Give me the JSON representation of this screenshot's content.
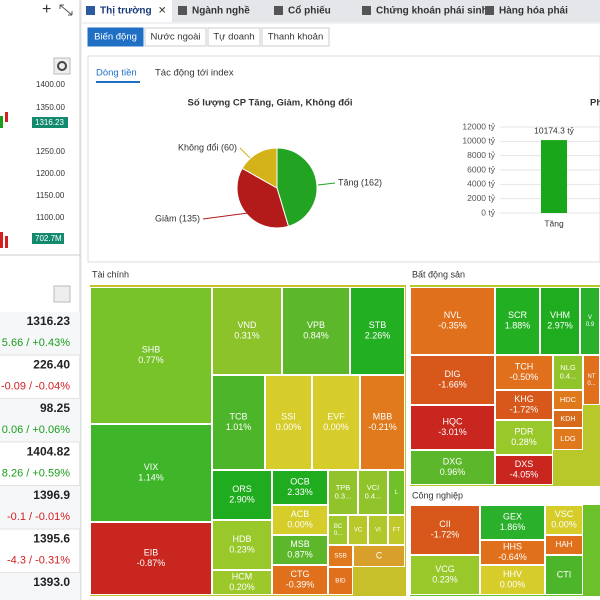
{
  "left_panel": {
    "price_axis": [
      "1400.00",
      "1350.00",
      "1250.00",
      "1200.00",
      "1150.00",
      "1100.00"
    ],
    "last_price": "1316.23",
    "volume": "702.7M",
    "indices": [
      {
        "price": "1316.23",
        "change": "5.66 / +0.43%",
        "color": "#1a9e1a"
      },
      {
        "price": "226.40",
        "change": "-0.09 / -0.04%",
        "color": "#d32020"
      },
      {
        "price": "98.25",
        "change": "0.06 / +0.06%",
        "color": "#1a9e1a"
      },
      {
        "price": "1404.82",
        "change": "8.26 / +0.59%",
        "color": "#1a9e1a"
      },
      {
        "price": "1396.9",
        "change": "-0.1 / -0.01%",
        "color": "#d32020"
      },
      {
        "price": "1395.6",
        "change": "-4.3 / -0.31%",
        "color": "#d32020"
      },
      {
        "price": "1393.0"
      }
    ]
  },
  "tabs": [
    "Thị trường",
    "Ngành nghề",
    "Cổ phiếu",
    "Chứng khoán phái sinh",
    "Hàng hóa phái"
  ],
  "sub_tabs": [
    "Biến động",
    "Nước ngoài",
    "Tự doanh",
    "Thanh khoản"
  ],
  "view_tabs": [
    "Dòng tiền",
    "Tác động tới index"
  ],
  "chart_data": [
    {
      "type": "pie",
      "title": "Số lượng CP Tăng, Giảm, Không đổi",
      "labels": [
        "Tăng (162)",
        "Giảm (135)",
        "Không đổi (60)"
      ],
      "values": [
        162,
        135,
        60
      ],
      "colors": [
        "#22a322",
        "#b31b1b",
        "#d4b21a"
      ]
    },
    {
      "type": "bar",
      "title": "Ph",
      "categories": [
        "Tăng"
      ],
      "values": [
        10174.3
      ],
      "value_labels": [
        "10174.3 tỷ"
      ],
      "color": "#1aa61a",
      "ylim": [
        0,
        12000
      ],
      "yticks": [
        {
          "value": 0,
          "label": "0 tỷ"
        },
        {
          "value": 2000,
          "label": "2000 tỷ"
        },
        {
          "value": 4000,
          "label": "4000 tỷ"
        },
        {
          "value": 6000,
          "label": "6000 tỷ"
        },
        {
          "value": 8000,
          "label": "8000 tỷ"
        },
        {
          "value": 10000,
          "label": "10000 tỷ"
        },
        {
          "value": 12000,
          "label": "12000 tỷ"
        }
      ]
    }
  ],
  "treemap": {
    "sectors": [
      {
        "name": "Tài chính",
        "tiles": [
          {
            "symbol": "SHB",
            "label": "0.77%",
            "color": "#78c22a"
          },
          {
            "symbol": "VIX",
            "label": "1.14%",
            "color": "#3fb52a"
          },
          {
            "symbol": "EIB",
            "label": "-0.87%",
            "color": "#c8261e"
          },
          {
            "symbol": "VND",
            "label": "0.31%",
            "color": "#8cc22a"
          },
          {
            "symbol": "VPB",
            "label": "0.84%",
            "color": "#5cb82a"
          },
          {
            "symbol": "STB",
            "label": "2.26%",
            "color": "#22b022"
          },
          {
            "symbol": "TCB",
            "label": "1.01%",
            "color": "#4db52a"
          },
          {
            "symbol": "SSI",
            "label": "0.00%",
            "color": "#d6cc2a"
          },
          {
            "symbol": "EVF",
            "label": "0.00%",
            "color": "#d6cc2a"
          },
          {
            "symbol": "MBB",
            "label": "-0.21%",
            "color": "#e07a1c"
          },
          {
            "symbol": "ORS",
            "label": "2.90%",
            "color": "#1fad1f"
          },
          {
            "symbol": "HDB",
            "label": "0.23%",
            "color": "#98c82a"
          },
          {
            "symbol": "HCM",
            "label": "0.20%",
            "color": "#9cc82a"
          },
          {
            "symbol": "OCB",
            "label": "2.33%",
            "color": "#1fad1f"
          },
          {
            "symbol": "ACB",
            "label": "0.00%",
            "color": "#d6cc2a"
          },
          {
            "symbol": "MSB",
            "label": "0.87%",
            "color": "#5cb82a"
          },
          {
            "symbol": "CTG",
            "label": "-0.39%",
            "color": "#e0701c"
          },
          {
            "symbol": "TPB",
            "label": "0.3...",
            "color": "#90c42a"
          },
          {
            "symbol": "VCI",
            "label": "0.4...",
            "color": "#90c42a"
          },
          {
            "symbol": "L",
            "color": "#70c02a"
          },
          {
            "symbol": "BC",
            "label": "0...",
            "color": "#a0c82a"
          },
          {
            "symbol": "VC",
            "color": "#b8c82a"
          },
          {
            "symbol": "VI",
            "color": "#b0c82a"
          },
          {
            "symbol": "FT",
            "color": "#c0c82a"
          },
          {
            "symbol": "SSB",
            "color": "#e0781c"
          },
          {
            "symbol": "C",
            "color": "#d8a02a"
          },
          {
            "symbol": "BID",
            "color": "#e0701c"
          }
        ]
      },
      {
        "name": "Bất động sản",
        "tiles": [
          {
            "symbol": "NVL",
            "label": "-0.35%",
            "color": "#e0701c"
          },
          {
            "symbol": "SCR",
            "label": "1.88%",
            "color": "#22b022"
          },
          {
            "symbol": "VHM",
            "label": "2.97%",
            "color": "#1fad1f"
          },
          {
            "symbol": "V",
            "label": "0.9",
            "color": "#2ab02a"
          },
          {
            "symbol": "DIG",
            "label": "-1.66%",
            "color": "#d8581c"
          },
          {
            "symbol": "HQC",
            "label": "-3.01%",
            "color": "#c8261e"
          },
          {
            "symbol": "DXG",
            "label": "0.96%",
            "color": "#5cb82a"
          },
          {
            "symbol": "TCH",
            "label": "-0.50%",
            "color": "#e0701c"
          },
          {
            "symbol": "KHG",
            "label": "-1.72%",
            "color": "#d8581c"
          },
          {
            "symbol": "PDR",
            "label": "0.28%",
            "color": "#98c82a"
          },
          {
            "symbol": "DXS",
            "label": "-4.05%",
            "color": "#c8261e"
          },
          {
            "symbol": "NLG",
            "label": "0.4...",
            "color": "#90c42a"
          },
          {
            "symbol": "NT",
            "label": "0...",
            "color": "#e0701c"
          },
          {
            "symbol": "HDC",
            "color": "#e0781c"
          },
          {
            "symbol": "KDH",
            "color": "#d86a1c"
          },
          {
            "symbol": "LDG",
            "color": "#e0781c"
          }
        ]
      },
      {
        "name": "Công nghiệp",
        "tiles": [
          {
            "symbol": "CII",
            "label": "-1.72%",
            "color": "#d8581c"
          },
          {
            "symbol": "VCG",
            "label": "0.23%",
            "color": "#98c82a"
          },
          {
            "symbol": "GEX",
            "label": "1.86%",
            "color": "#2ab02a"
          },
          {
            "symbol": "HHS",
            "label": "-0.64%",
            "color": "#e0701c"
          },
          {
            "symbol": "HHV",
            "label": "0.00%",
            "color": "#d6cc2a"
          },
          {
            "symbol": "VSC",
            "label": "0.00%",
            "color": "#d6cc2a"
          },
          {
            "symbol": "HAH",
            "color": "#e0701c"
          },
          {
            "symbol": "CTI",
            "color": "#4db52a"
          }
        ]
      }
    ]
  }
}
